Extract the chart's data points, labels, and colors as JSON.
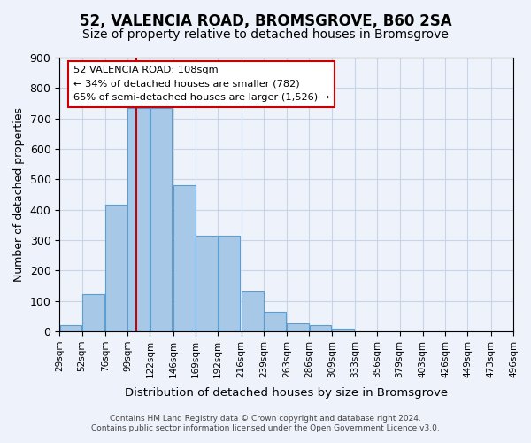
{
  "title": "52, VALENCIA ROAD, BROMSGROVE, B60 2SA",
  "subtitle": "Size of property relative to detached houses in Bromsgrove",
  "xlabel": "Distribution of detached houses by size in Bromsgrove",
  "ylabel": "Number of detached properties",
  "bin_labels": [
    "29sqm",
    "52sqm",
    "76sqm",
    "99sqm",
    "122sqm",
    "146sqm",
    "169sqm",
    "192sqm",
    "216sqm",
    "239sqm",
    "263sqm",
    "286sqm",
    "309sqm",
    "333sqm",
    "356sqm",
    "379sqm",
    "403sqm",
    "426sqm",
    "449sqm",
    "473sqm",
    "496sqm"
  ],
  "bin_edges": [
    29,
    52,
    76,
    99,
    122,
    146,
    169,
    192,
    216,
    239,
    263,
    286,
    309,
    333,
    356,
    379,
    403,
    426,
    449,
    473,
    496
  ],
  "bar_heights": [
    20,
    122,
    418,
    735,
    735,
    480,
    315,
    315,
    130,
    65,
    25,
    20,
    10,
    0,
    0,
    0,
    0,
    0,
    0,
    0,
    8
  ],
  "bar_color": "#a8c8e8",
  "bar_edge_color": "#5a9fd4",
  "vline_x": 108,
  "vline_color": "#cc0000",
  "ylim": [
    0,
    900
  ],
  "yticks": [
    0,
    100,
    200,
    300,
    400,
    500,
    600,
    700,
    800,
    900
  ],
  "annotation_line1": "52 VALENCIA ROAD: 108sqm",
  "annotation_line2": "← 34% of detached houses are smaller (782)",
  "annotation_line3": "65% of semi-detached houses are larger (1,526) →",
  "footer_line1": "Contains HM Land Registry data © Crown copyright and database right 2024.",
  "footer_line2": "Contains public sector information licensed under the Open Government Licence v3.0.",
  "bg_color": "#eef2fb",
  "grid_color": "#c8d4e8",
  "title_fontsize": 12,
  "subtitle_fontsize": 10
}
